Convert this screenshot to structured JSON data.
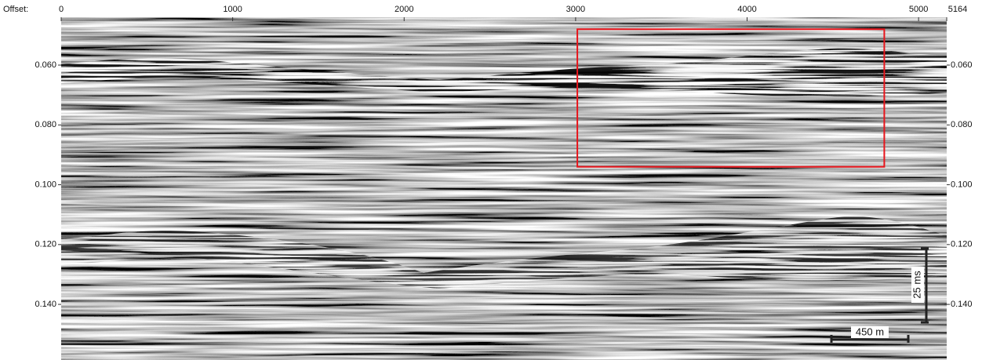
{
  "chart_data": {
    "type": "seismic-section",
    "x_label": "Offset:",
    "xlim": [
      0,
      5164
    ],
    "xticks": [
      0,
      1000,
      2000,
      3000,
      4000,
      5000,
      5164
    ],
    "ylim": [
      0.044,
      0.1586
    ],
    "yticks": [
      {
        "value": 0.06,
        "label": "0.060"
      },
      {
        "value": 0.08,
        "label": "0.080"
      },
      {
        "value": 0.1,
        "label": "0.100"
      },
      {
        "value": 0.12,
        "label": "0.120"
      },
      {
        "value": 0.14,
        "label": "0.140"
      }
    ],
    "grid": false,
    "highlight": {
      "x": [
        3010,
        4800
      ],
      "y": [
        0.048,
        0.094
      ],
      "color": "#e8141b"
    },
    "scale_bars": {
      "vertical": "25 ms",
      "horizontal": "450 m"
    }
  }
}
